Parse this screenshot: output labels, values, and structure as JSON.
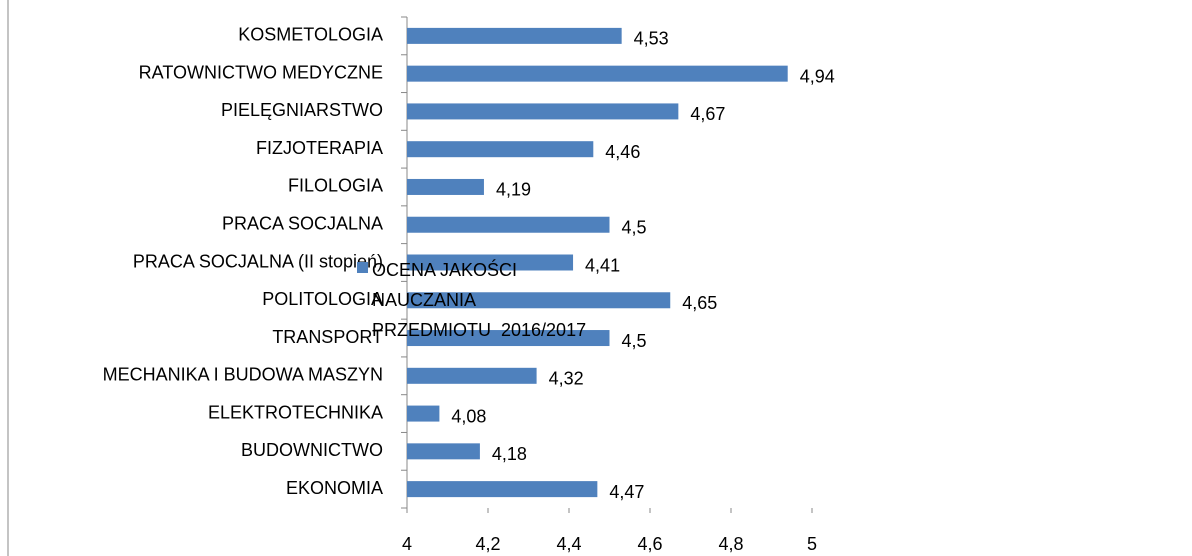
{
  "chart_data": {
    "type": "bar",
    "orientation": "horizontal",
    "categories": [
      "KOSMETOLOGIA",
      "RATOWNICTWO MEDYCZNE",
      "PIELĘGNIARSTWO",
      "FIZJOTERAPIA",
      "FILOLOGIA",
      "PRACA SOCJALNA",
      "PRACA SOCJALNA (II stopień)",
      "POLITOLOGIA",
      "TRANSPORT ",
      "MECHANIKA I BUDOWA MASZYN",
      "ELEKTROTECHNIKA",
      "BUDOWNICTWO",
      "EKONOMIA"
    ],
    "series": [
      {
        "name": "OCENA JAKOŚCI NAUCZANIA PRZEDMIOTU  2016/2017",
        "color": "#4f81bd",
        "values": [
          4.53,
          4.94,
          4.67,
          4.46,
          4.19,
          4.5,
          4.41,
          4.65,
          4.5,
          4.32,
          4.08,
          4.18,
          4.47
        ],
        "value_labels": [
          "4,53",
          "4,94",
          "4,67",
          "4,46",
          "4,19",
          "4,5",
          "4,41",
          "4,65",
          "4,5",
          "4,32",
          "4,08",
          "4,18",
          "4,47"
        ]
      }
    ],
    "xlim": [
      4,
      5
    ],
    "xticks": [
      4,
      {
        "value": 4.2,
        "label": "4,2"
      },
      {
        "value": 4.4,
        "label": "4,4"
      },
      {
        "value": 4.6,
        "label": "4,6"
      },
      {
        "value": 4.8,
        "label": "4,8"
      },
      5
    ],
    "legend": "right"
  }
}
